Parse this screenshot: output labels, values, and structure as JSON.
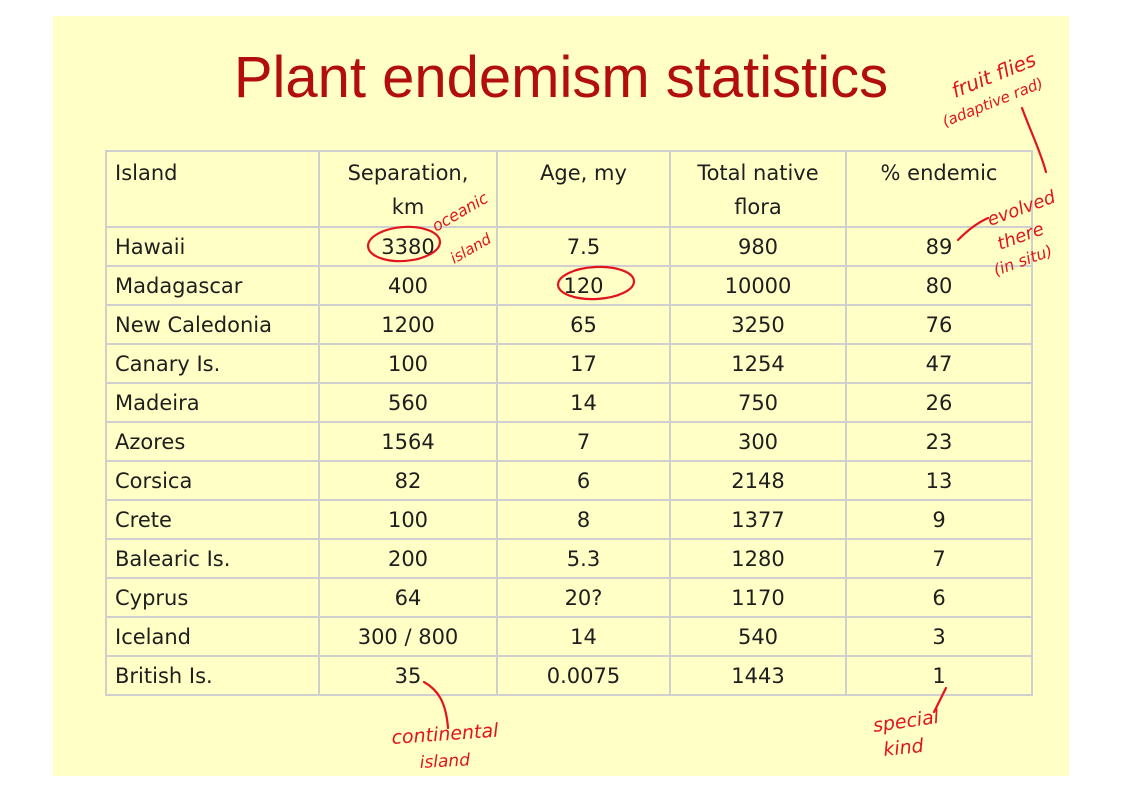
{
  "title": "Plant endemism statistics",
  "table": {
    "headers": [
      "Island",
      "Separation, km",
      "Age, my",
      "Total native flora",
      "% endemic"
    ],
    "rows": [
      [
        "Hawaii",
        "3380",
        "7.5",
        "980",
        "89"
      ],
      [
        "Madagascar",
        "400",
        "120",
        "10000",
        "80"
      ],
      [
        "New Caledonia",
        "1200",
        "65",
        "3250",
        "76"
      ],
      [
        "Canary Is.",
        "100",
        "17",
        "1254",
        "47"
      ],
      [
        "Madeira",
        "560",
        "14",
        "750",
        "26"
      ],
      [
        "Azores",
        "1564",
        "7",
        "300",
        "23"
      ],
      [
        "Corsica",
        "82",
        "6",
        "2148",
        "13"
      ],
      [
        "Crete",
        "100",
        "8",
        "1377",
        "9"
      ],
      [
        "Balearic Is.",
        "200",
        "5.3",
        "1280",
        "7"
      ],
      [
        "Cyprus",
        "64",
        "20?",
        "1170",
        "6"
      ],
      [
        "Iceland",
        "300 / 800",
        "14",
        "540",
        "3"
      ],
      [
        "British Is.",
        "35",
        "0.0075",
        "1443",
        "1"
      ]
    ]
  },
  "annotations": {
    "fruit_flies": "fruit flies",
    "adaptive_rad": "(adaptive rad)",
    "oceanic": "oceanic",
    "island_1": "island",
    "evolved": "evolved",
    "there": "there",
    "in_situ": "(in situ)",
    "continental": "continental",
    "island_2": "island",
    "special": "special",
    "kind": "kind",
    "ink_color": "#e2141e"
  },
  "colors": {
    "title": "#b20e0e",
    "slide_bg": "#ffffc6",
    "grid": "#cfcfcf"
  }
}
